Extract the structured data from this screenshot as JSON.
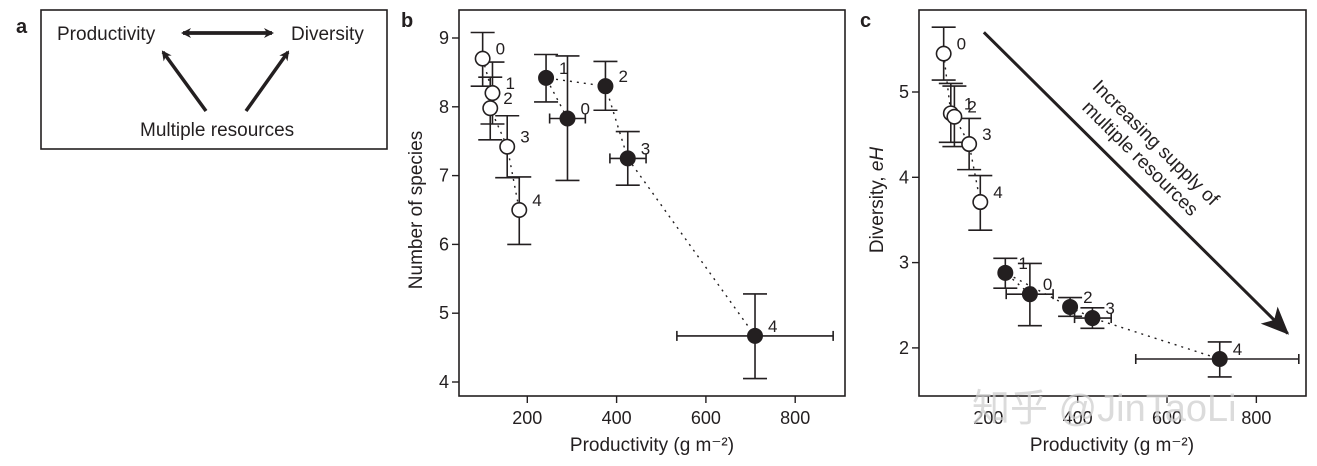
{
  "panel_a": {
    "letter": "a",
    "nodes": {
      "productivity": "Productivity",
      "diversity": "Diversity",
      "resources": "Multiple resources"
    }
  },
  "watermark": "知乎 @JinTaoLi",
  "chart_data": [
    {
      "panel": "b",
      "type": "scatter",
      "title": "",
      "xlabel": "Productivity (g m⁻²)",
      "ylabel": "Number  of species",
      "xlim": [
        50,
        920
      ],
      "ylim": [
        3.85,
        9.4
      ],
      "xticks": [
        200,
        400,
        600,
        800
      ],
      "yticks": [
        4,
        5,
        6,
        7,
        8,
        9
      ],
      "grid": false,
      "series": [
        {
          "name": "open",
          "fill": "open",
          "connected": "dotted",
          "points": [
            {
              "label": "0",
              "x": 100,
              "y": 8.7,
              "yerr": [
                8.3,
                9.08
              ],
              "xerr": null
            },
            {
              "label": "1",
              "x": 122,
              "y": 8.2,
              "yerr": [
                7.75,
                8.65
              ],
              "xerr": [
                112,
                132
              ]
            },
            {
              "label": "2",
              "x": 117,
              "y": 7.98,
              "yerr": [
                7.52,
                8.43
              ],
              "xerr": null
            },
            {
              "label": "3",
              "x": 155,
              "y": 7.42,
              "yerr": [
                6.97,
                7.87
              ],
              "xerr": null
            },
            {
              "label": "4",
              "x": 182,
              "y": 6.5,
              "yerr": [
                6.0,
                6.98
              ],
              "xerr": [
                172,
                192
              ]
            }
          ]
        },
        {
          "name": "filled",
          "fill": "solid",
          "connected": "dotted",
          "points": [
            {
              "label": "1",
              "x": 242,
              "y": 8.42,
              "yerr": [
                8.07,
                8.76
              ],
              "xerr": null
            },
            {
              "label": "0",
              "x": 290,
              "y": 7.83,
              "yerr": [
                6.93,
                8.74
              ],
              "xerr": [
                250,
                330
              ]
            },
            {
              "label": "2",
              "x": 375,
              "y": 8.3,
              "yerr": [
                7.95,
                8.66
              ],
              "xerr": null
            },
            {
              "label": "3",
              "x": 425,
              "y": 7.25,
              "yerr": [
                6.86,
                7.64
              ],
              "xerr": [
                385,
                466
              ]
            },
            {
              "label": "4",
              "x": 710,
              "y": 4.67,
              "yerr": [
                4.05,
                5.28
              ],
              "xerr": [
                535,
                885
              ]
            }
          ]
        }
      ]
    },
    {
      "panel": "c",
      "type": "scatter",
      "title": "",
      "xlabel": "Productivity (g m⁻²)",
      "ylabel_main": "Diversity, ",
      "ylabel_italic": "eH",
      "xlim": [
        50,
        915
      ],
      "ylim": [
        1.45,
        5.95
      ],
      "xticks": [
        200,
        400,
        600,
        800
      ],
      "yticks": [
        2,
        3,
        4,
        5
      ],
      "grid": false,
      "annotation": {
        "line1": "Increasing supply of",
        "line2": "multiple resources",
        "arrow_from": [
          190,
          5.7
        ],
        "arrow_to": [
          870,
          2.17
        ]
      },
      "series": [
        {
          "name": "open",
          "fill": "open",
          "connected": "dotted",
          "points": [
            {
              "label": "0",
              "x": 100,
              "y": 5.45,
              "yerr": [
                5.14,
                5.76
              ],
              "xerr": null
            },
            {
              "label": "1",
              "x": 116,
              "y": 4.75,
              "yerr": [
                4.41,
                5.1
              ],
              "xerr": null
            },
            {
              "label": "2",
              "x": 124,
              "y": 4.71,
              "yerr": [
                4.36,
                5.07
              ],
              "xerr": null
            },
            {
              "label": "3",
              "x": 157,
              "y": 4.39,
              "yerr": [
                4.09,
                4.69
              ],
              "xerr": null
            },
            {
              "label": "4",
              "x": 182,
              "y": 3.71,
              "yerr": [
                3.38,
                4.02
              ],
              "xerr": [
                172,
                192
              ]
            }
          ]
        },
        {
          "name": "filled",
          "fill": "solid",
          "connected": "dotted",
          "points": [
            {
              "label": "1",
              "x": 238,
              "y": 2.88,
              "yerr": [
                2.7,
                3.05
              ],
              "xerr": null
            },
            {
              "label": "0",
              "x": 293,
              "y": 2.63,
              "yerr": [
                2.26,
                2.99
              ],
              "xerr": [
                240,
                345
              ]
            },
            {
              "label": "2",
              "x": 383,
              "y": 2.48,
              "yerr": [
                2.37,
                2.59
              ],
              "xerr": null
            },
            {
              "label": "3",
              "x": 433,
              "y": 2.35,
              "yerr": [
                2.23,
                2.47
              ],
              "xerr": [
                393,
                475
              ]
            },
            {
              "label": "4",
              "x": 718,
              "y": 1.87,
              "yerr": [
                1.66,
                2.07
              ],
              "xerr": [
                530,
                895
              ]
            }
          ]
        }
      ]
    }
  ]
}
